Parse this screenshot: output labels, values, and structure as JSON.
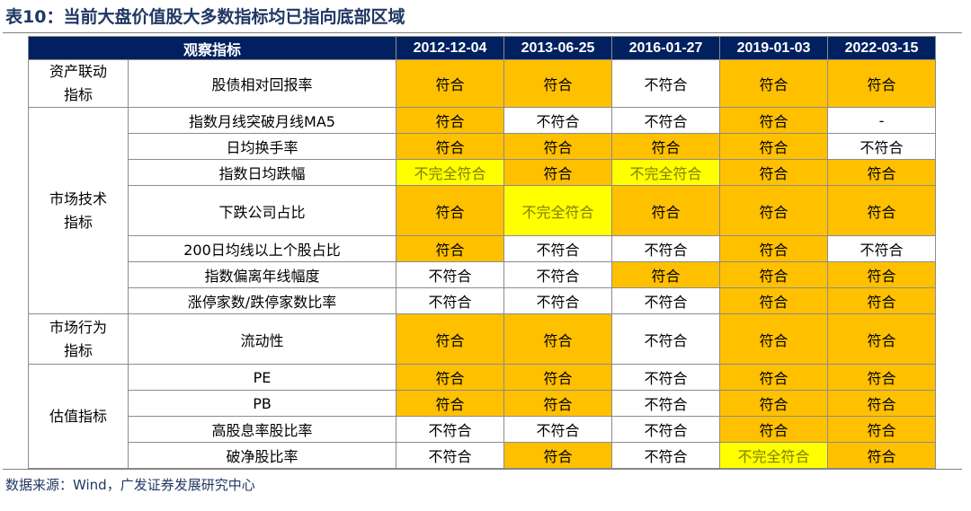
{
  "title": "表10：当前大盘价值股大多数指标均已指向底部区域",
  "header": {
    "indicator": "观察指标",
    "dates": [
      "2012-12-04",
      "2013-06-25",
      "2016-01-27",
      "2019-01-03",
      "2022-03-15"
    ]
  },
  "categories": [
    {
      "name_lines": [
        "资产联动",
        "指标"
      ],
      "rows": [
        0
      ]
    },
    {
      "name_lines": [
        "市场技术",
        "指标"
      ],
      "rows": [
        1,
        2,
        3,
        4,
        5,
        6,
        7
      ]
    },
    {
      "name_lines": [
        "市场行为",
        "指标"
      ],
      "rows": [
        8
      ]
    },
    {
      "name_lines": [
        "估值指标"
      ],
      "rows": [
        9,
        10,
        11,
        12
      ]
    }
  ],
  "rows": [
    {
      "indicator": "股债相对回报率",
      "values": [
        "符合",
        "符合",
        "不符合",
        "符合",
        "符合"
      ],
      "status": [
        "y",
        "y",
        "w",
        "y",
        "y"
      ]
    },
    {
      "indicator": "指数月线突破月线MA5",
      "values": [
        "符合",
        "不符合",
        "不符合",
        "符合",
        "-"
      ],
      "status": [
        "y",
        "w",
        "w",
        "y",
        "w"
      ]
    },
    {
      "indicator": "日均换手率",
      "values": [
        "符合",
        "符合",
        "符合",
        "符合",
        "不符合"
      ],
      "status": [
        "y",
        "y",
        "y",
        "y",
        "w"
      ]
    },
    {
      "indicator": "指数日均跌幅",
      "values": [
        "不完全符合",
        "符合",
        "不完全符合",
        "符合",
        "符合"
      ],
      "status": [
        "p",
        "y",
        "p",
        "y",
        "y"
      ]
    },
    {
      "indicator": "下跌公司占比",
      "values": [
        "符合",
        "不完全符合",
        "符合",
        "符合",
        "符合"
      ],
      "status": [
        "y",
        "p",
        "y",
        "y",
        "y"
      ]
    },
    {
      "indicator": "200日均线以上个股占比",
      "values": [
        "符合",
        "不符合",
        "不符合",
        "符合",
        "不符合"
      ],
      "status": [
        "y",
        "w",
        "w",
        "y",
        "w"
      ]
    },
    {
      "indicator": "指数偏离年线幅度",
      "values": [
        "不符合",
        "不符合",
        "符合",
        "符合",
        "符合"
      ],
      "status": [
        "w",
        "w",
        "y",
        "y",
        "y"
      ]
    },
    {
      "indicator": "涨停家数/跌停家数比率",
      "values": [
        "不符合",
        "不符合",
        "不符合",
        "符合",
        "符合"
      ],
      "status": [
        "w",
        "w",
        "w",
        "y",
        "y"
      ]
    },
    {
      "indicator": "流动性",
      "values": [
        "符合",
        "符合",
        "不符合",
        "符合",
        "符合"
      ],
      "status": [
        "y",
        "y",
        "w",
        "y",
        "y"
      ]
    },
    {
      "indicator": "PE",
      "values": [
        "符合",
        "符合",
        "不符合",
        "符合",
        "符合"
      ],
      "status": [
        "y",
        "y",
        "w",
        "y",
        "y"
      ]
    },
    {
      "indicator": "PB",
      "values": [
        "符合",
        "符合",
        "不符合",
        "符合",
        "符合"
      ],
      "status": [
        "y",
        "y",
        "w",
        "y",
        "y"
      ]
    },
    {
      "indicator": "高股息率股比率",
      "values": [
        "不符合",
        "不符合",
        "不符合",
        "符合",
        "符合"
      ],
      "status": [
        "w",
        "w",
        "w",
        "y",
        "y"
      ]
    },
    {
      "indicator": "破净股比率",
      "values": [
        "不符合",
        "符合",
        "不符合",
        "不完全符合",
        "符合"
      ],
      "status": [
        "w",
        "y",
        "w",
        "p",
        "y"
      ]
    }
  ],
  "colors": {
    "header_bg": "#002060",
    "match": "#ffc000",
    "partial": "#ffff00",
    "no_match": "#ffffff",
    "title": "#1f3864"
  },
  "source": "数据来源：Wind，广发证券发展研究中心"
}
